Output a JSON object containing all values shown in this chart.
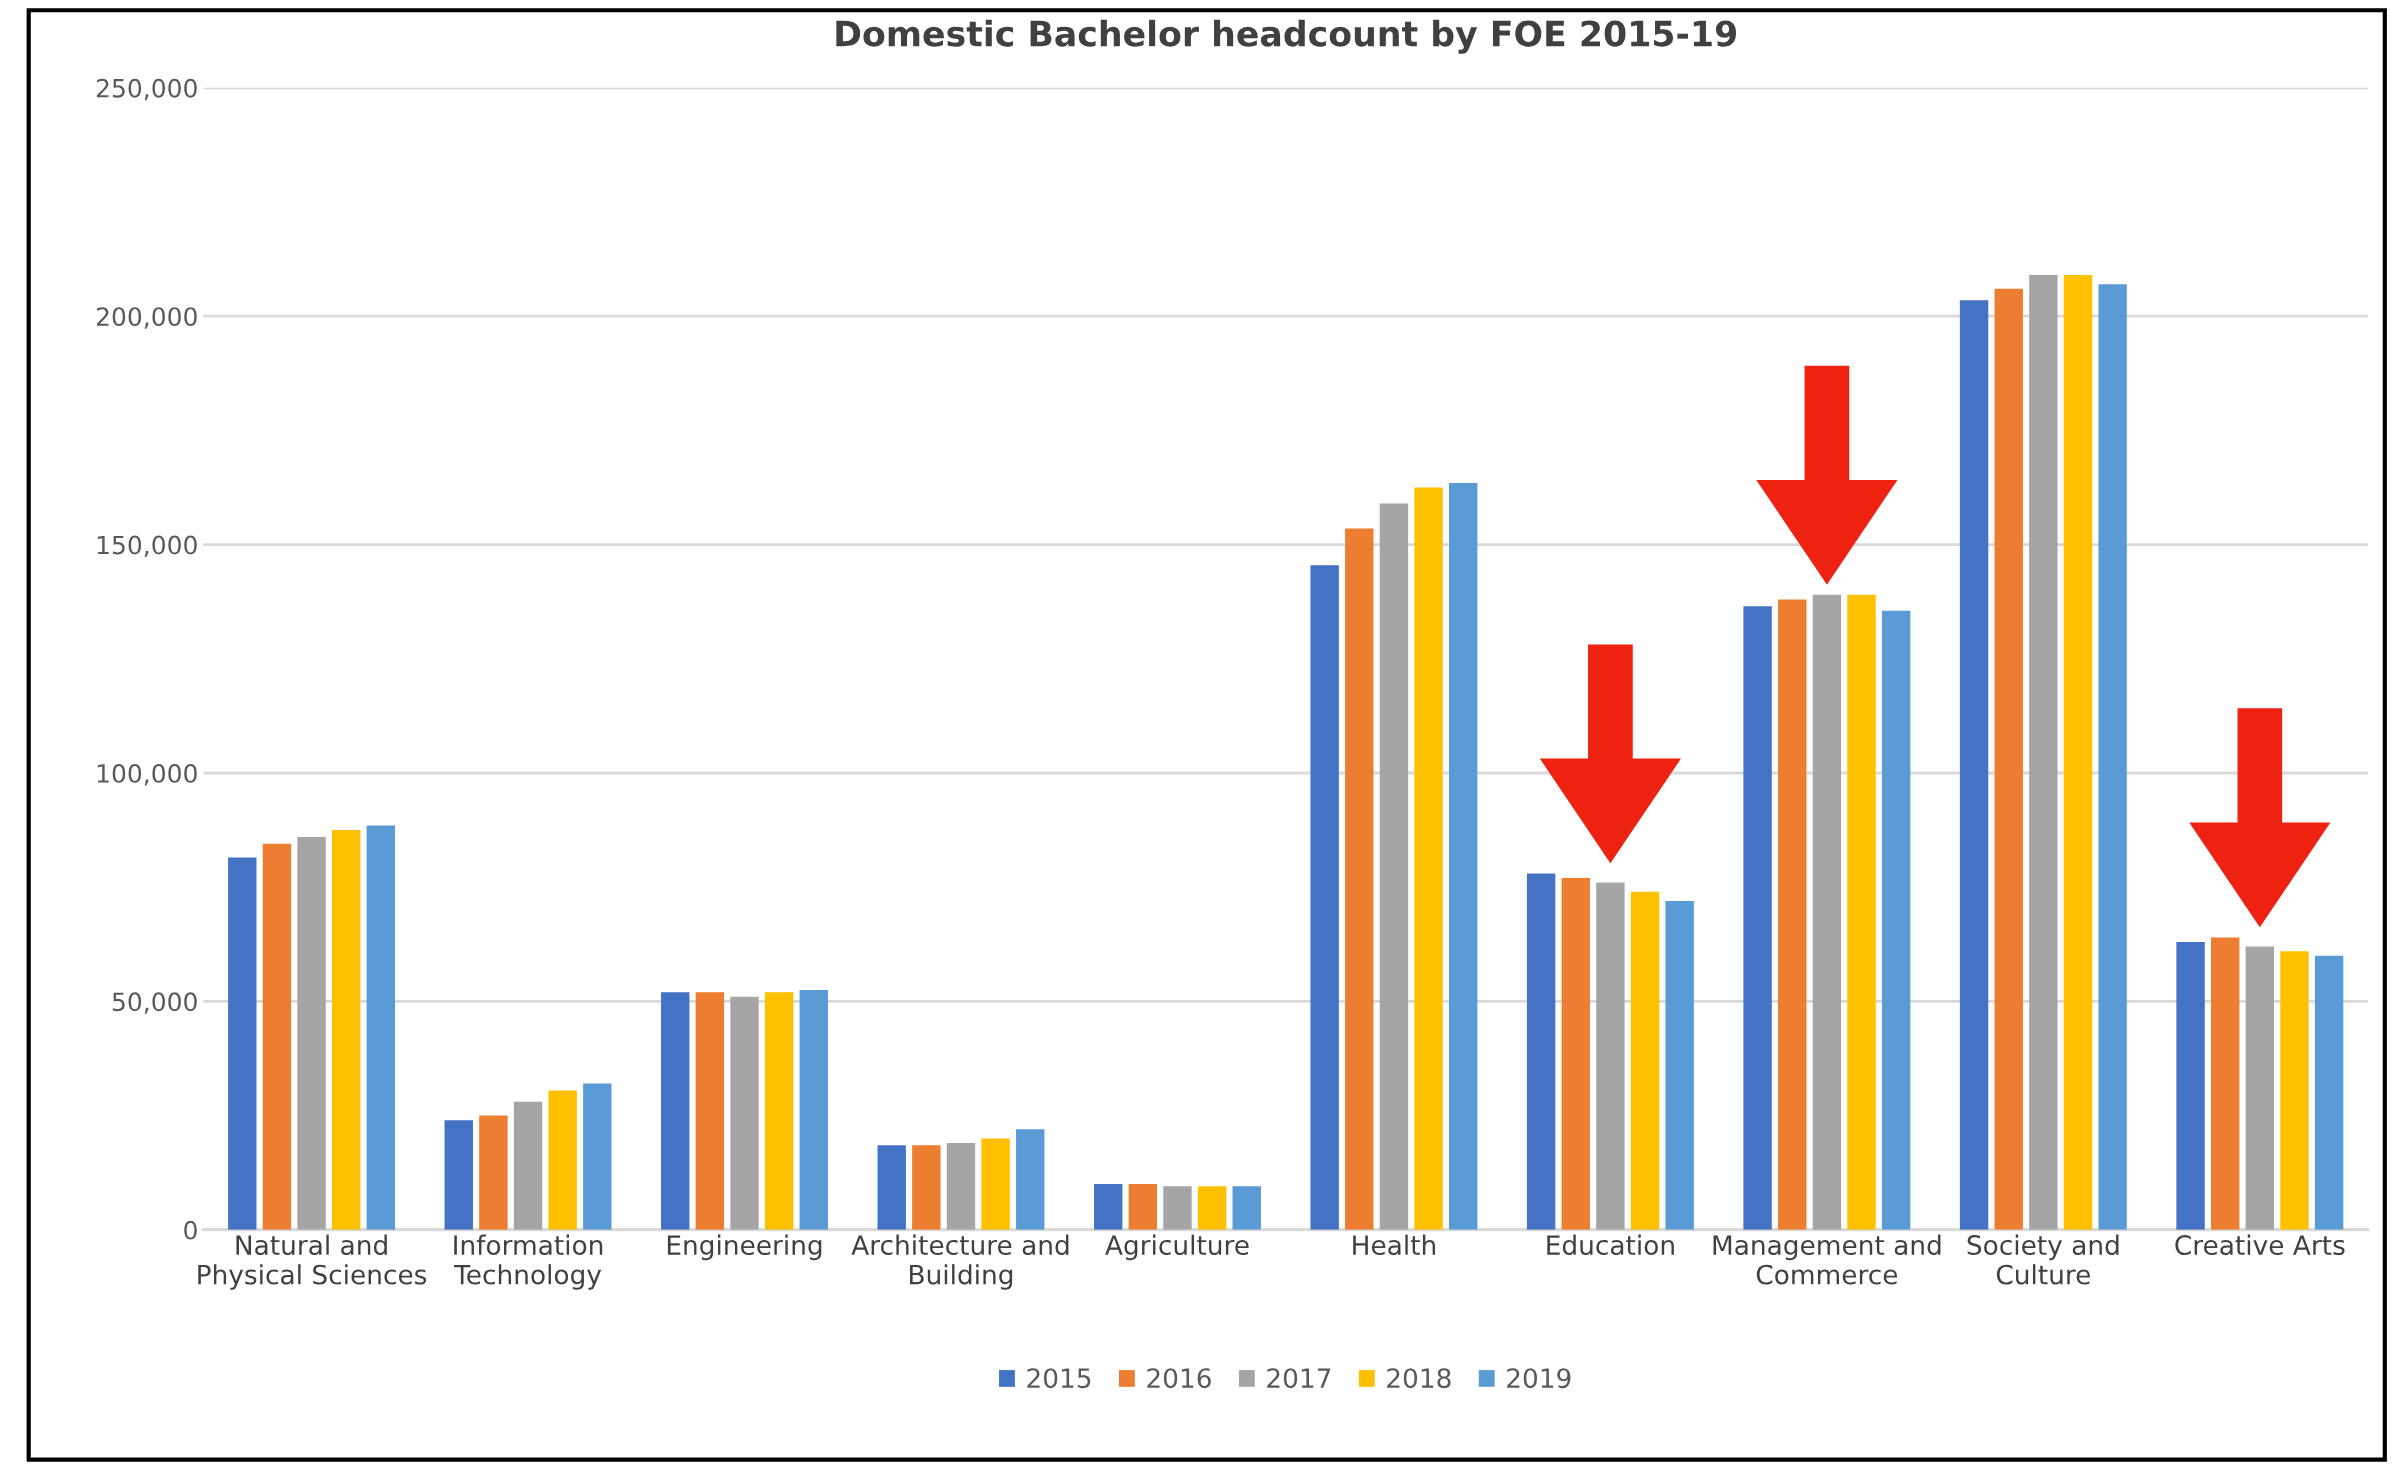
{
  "chart_data": {
    "type": "bar",
    "title": "Domestic Bachelor headcount by FOE 2015-19",
    "categories": [
      "Natural and\nPhysical Sciences",
      "Information\nTechnology",
      "Engineering",
      "Architecture and\nBuilding",
      "Agriculture",
      "Health",
      "Education",
      "Management and\nCommerce",
      "Society and\nCulture",
      "Creative Arts"
    ],
    "series": [
      {
        "name": "2015",
        "color": "#4472c4",
        "values": [
          81500,
          24000,
          52000,
          18500,
          10000,
          145500,
          78000,
          136500,
          203500,
          63000
        ]
      },
      {
        "name": "2016",
        "color": "#ed7d31",
        "values": [
          84500,
          25000,
          52000,
          18500,
          10000,
          153500,
          77000,
          138000,
          206000,
          64000
        ]
      },
      {
        "name": "2017",
        "color": "#a5a5a5",
        "values": [
          86000,
          28000,
          51000,
          19000,
          9500,
          159000,
          76000,
          139000,
          209000,
          62000
        ]
      },
      {
        "name": "2018",
        "color": "#ffc000",
        "values": [
          87500,
          30500,
          52000,
          20000,
          9500,
          162500,
          74000,
          139000,
          209000,
          61000
        ]
      },
      {
        "name": "2019",
        "color": "#5b9bd5",
        "values": [
          88500,
          32000,
          52500,
          22000,
          9500,
          163500,
          72000,
          135500,
          207000,
          60000
        ]
      }
    ],
    "ylim": [
      0,
      250000
    ],
    "yticks": [
      {
        "value": 0,
        "label": "0"
      },
      {
        "value": 50000,
        "label": "50,000"
      },
      {
        "value": 100000,
        "label": "100,000"
      },
      {
        "value": 150000,
        "label": "150,000"
      },
      {
        "value": 200000,
        "label": "200,000"
      },
      {
        "value": 250000,
        "label": "250,000"
      }
    ],
    "grid": "y",
    "legend": "bottom"
  }
}
